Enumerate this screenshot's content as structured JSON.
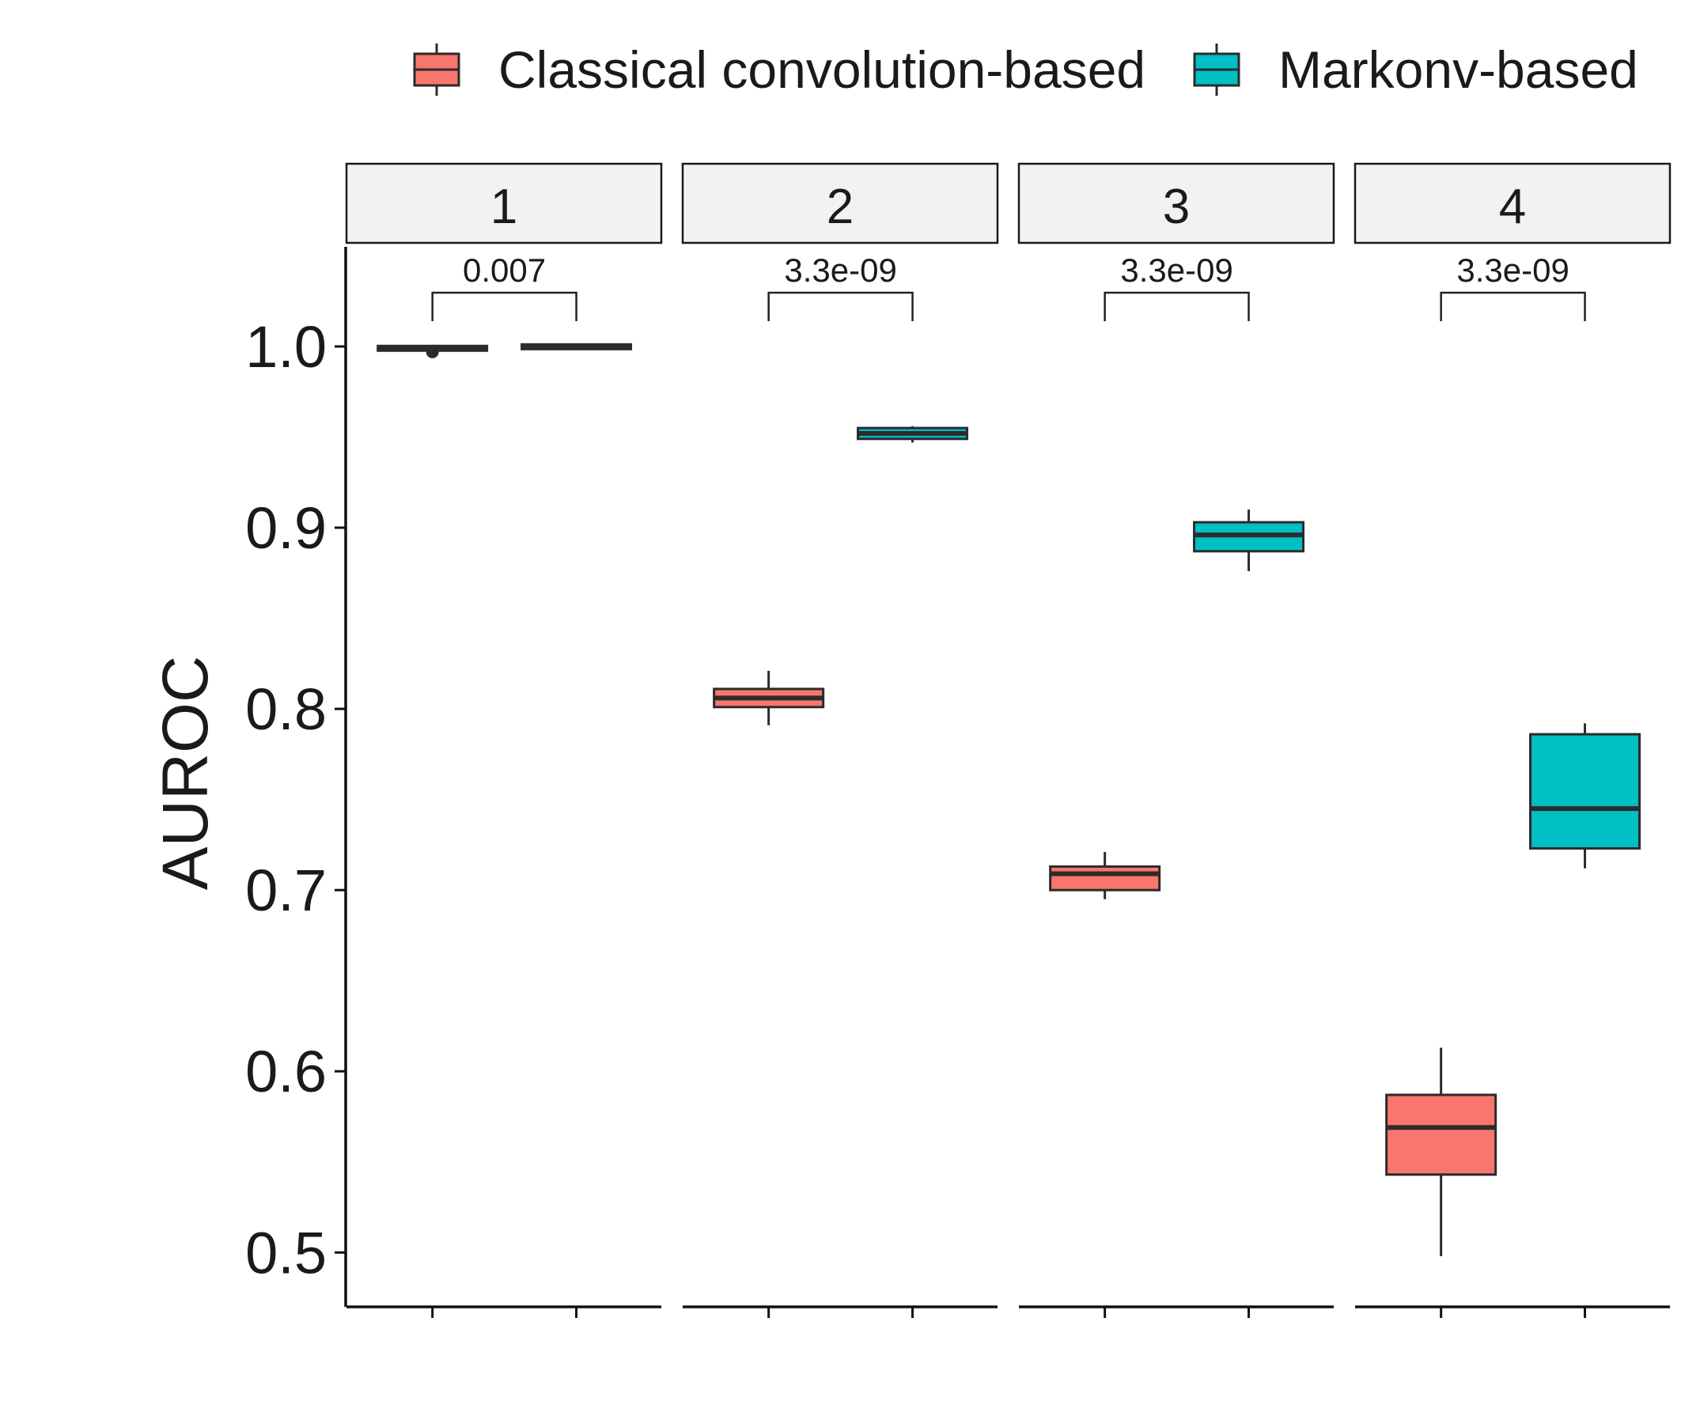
{
  "chart_data": {
    "type": "boxplot",
    "ylabel": "AUROC",
    "ylim": [
      0.47,
      1.055
    ],
    "yticks": [
      0.5,
      0.6,
      0.7,
      0.8,
      0.9,
      1.0
    ],
    "ytick_labels": [
      "0.5",
      "0.6",
      "0.7",
      "0.8",
      "0.9",
      "1.0"
    ],
    "legend": {
      "position": "top",
      "entries": [
        {
          "name": "Classical convolution-based",
          "color": "#F8766D"
        },
        {
          "name": "Markonv-based",
          "color": "#00BFC4"
        }
      ]
    },
    "grid": false,
    "panels": [
      {
        "label": "1",
        "p_value": "0.007",
        "boxes": [
          {
            "group": "Classical convolution-based",
            "min": 0.998,
            "q1": 0.9985,
            "median": 0.999,
            "q3": 0.9995,
            "max": 1.0,
            "outliers": [
              0.997
            ]
          },
          {
            "group": "Markonv-based",
            "min": 0.9995,
            "q1": 0.9997,
            "median": 1.0,
            "q3": 1.0,
            "max": 1.0,
            "outliers": []
          }
        ]
      },
      {
        "label": "2",
        "p_value": "3.3e-09",
        "boxes": [
          {
            "group": "Classical convolution-based",
            "min": 0.791,
            "q1": 0.801,
            "median": 0.806,
            "q3": 0.811,
            "max": 0.821,
            "outliers": []
          },
          {
            "group": "Markonv-based",
            "min": 0.947,
            "q1": 0.949,
            "median": 0.952,
            "q3": 0.955,
            "max": 0.956,
            "outliers": []
          }
        ]
      },
      {
        "label": "3",
        "p_value": "3.3e-09",
        "boxes": [
          {
            "group": "Classical convolution-based",
            "min": 0.695,
            "q1": 0.7,
            "median": 0.709,
            "q3": 0.713,
            "max": 0.721,
            "outliers": []
          },
          {
            "group": "Markonv-based",
            "min": 0.876,
            "q1": 0.887,
            "median": 0.896,
            "q3": 0.903,
            "max": 0.91,
            "outliers": []
          }
        ]
      },
      {
        "label": "4",
        "p_value": "3.3e-09",
        "boxes": [
          {
            "group": "Classical convolution-based",
            "min": 0.498,
            "q1": 0.543,
            "median": 0.569,
            "q3": 0.587,
            "max": 0.613,
            "outliers": []
          },
          {
            "group": "Markonv-based",
            "min": 0.712,
            "q1": 0.723,
            "median": 0.745,
            "q3": 0.786,
            "max": 0.792,
            "outliers": []
          }
        ]
      }
    ]
  }
}
